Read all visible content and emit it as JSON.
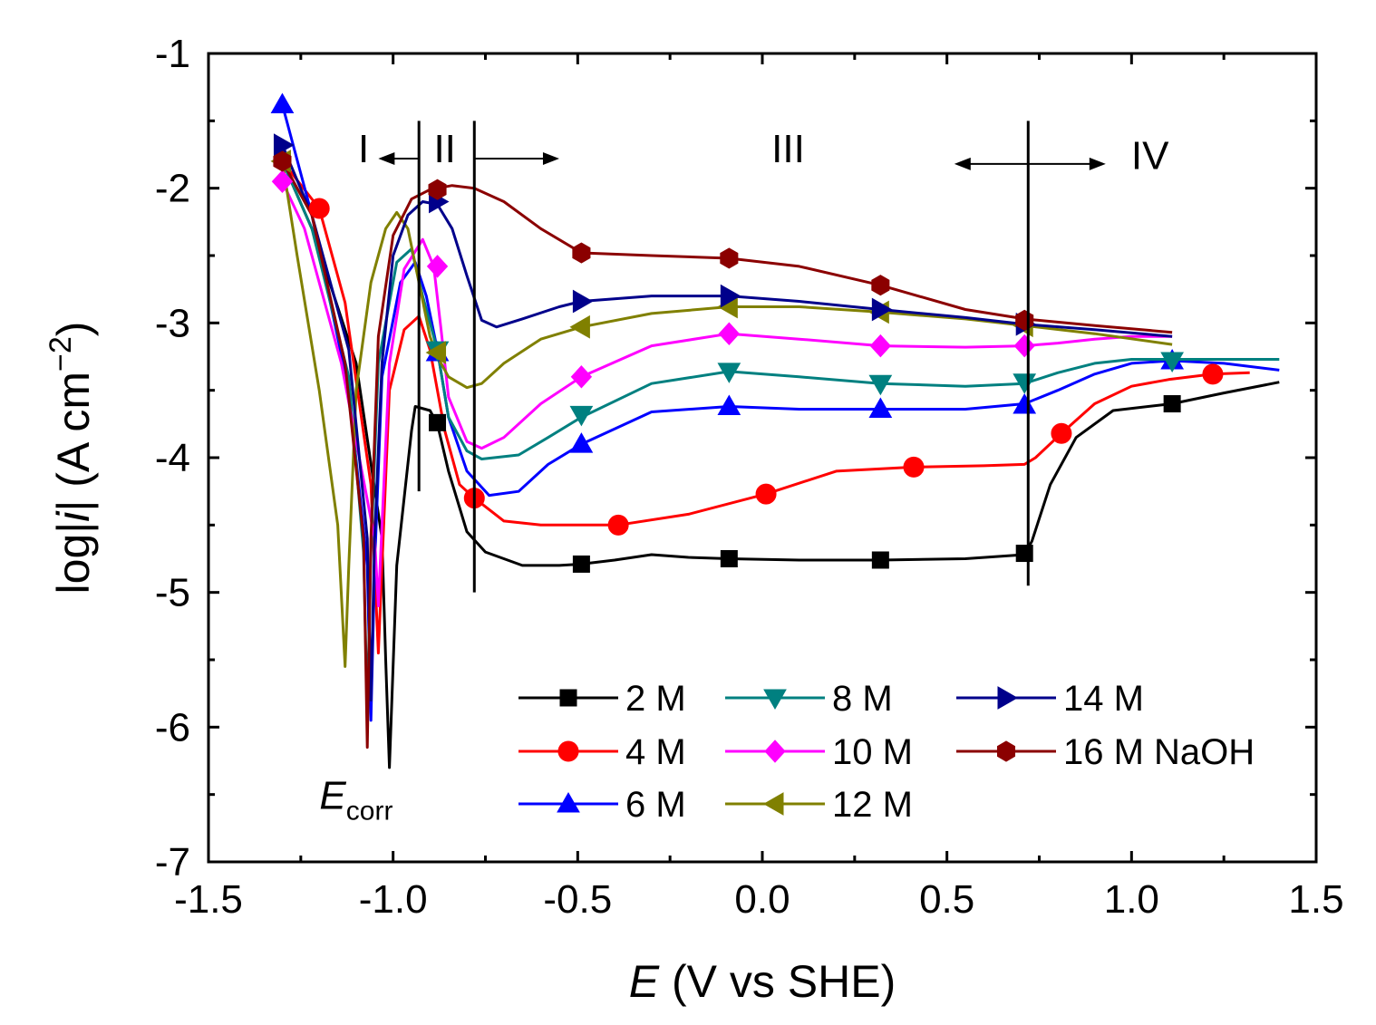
{
  "chart_data": {
    "type": "line",
    "title": "",
    "xlabel": {
      "italic": "E",
      "rest": " (V vs SHE)"
    },
    "ylabel": {
      "pre": "log|",
      "italic": "i",
      "post": "| (A cm",
      "sup": "−2",
      "close": ")"
    },
    "xlim": [
      -1.5,
      1.5
    ],
    "ylim": [
      -7,
      -1
    ],
    "xticks": [
      -1.5,
      -1.0,
      -0.5,
      0.0,
      0.5,
      1.0,
      1.5
    ],
    "xtick_labels": [
      "-1.5",
      "-1.0",
      "-0.5",
      "0.0",
      "0.5",
      "1.0",
      "1.5"
    ],
    "yticks": [
      -7,
      -6,
      -5,
      -4,
      -3,
      -2,
      -1
    ],
    "ytick_labels": [
      "-7",
      "-6",
      "-5",
      "-4",
      "-3",
      "-2",
      "-1"
    ],
    "grid": false,
    "legend_position": "bottom-right",
    "annotations": {
      "regions": [
        {
          "label": "I",
          "x": -1.08,
          "y": -1.7
        },
        {
          "label": "II",
          "x": -0.86,
          "y": -1.7
        },
        {
          "label": "III",
          "x": 0.07,
          "y": -1.7
        },
        {
          "label": "IV",
          "x": 1.05,
          "y": -1.75
        }
      ],
      "vlines": [
        {
          "x": -0.93,
          "y0": -4.25,
          "y1": -1.5
        },
        {
          "x": -0.78,
          "y0": -5.0,
          "y1": -1.5
        },
        {
          "x": 0.72,
          "y0": -4.95,
          "y1": -1.5
        }
      ],
      "arrows": [
        {
          "from": -0.93,
          "to": -1.04,
          "y": -1.78
        },
        {
          "from": -0.78,
          "to": -0.55,
          "y": -1.78
        },
        {
          "from": 0.72,
          "to": 0.52,
          "y": -1.82
        },
        {
          "from": 0.72,
          "to": 0.93,
          "y": -1.82
        }
      ],
      "ecorr": {
        "main": "E",
        "sub": "corr",
        "x": -1.1,
        "y": -6.5
      }
    },
    "series": [
      {
        "name": "2 M",
        "color": "#000000",
        "marker": "square",
        "x": [
          -1.3,
          -1.22,
          -1.1,
          -1.03,
          -1.02,
          -1.01,
          -0.99,
          -0.95,
          -0.94,
          -0.9,
          -0.88,
          -0.85,
          -0.8,
          -0.75,
          -0.65,
          -0.55,
          -0.49,
          -0.4,
          -0.3,
          -0.2,
          -0.09,
          0.1,
          0.32,
          0.55,
          0.71,
          0.73,
          0.78,
          0.85,
          0.95,
          1.11,
          1.25,
          1.4
        ],
        "y": [
          -1.8,
          -2.3,
          -3.3,
          -4.6,
          -5.5,
          -6.3,
          -4.8,
          -3.8,
          -3.62,
          -3.65,
          -3.75,
          -4.1,
          -4.55,
          -4.7,
          -4.8,
          -4.8,
          -4.79,
          -4.76,
          -4.72,
          -4.74,
          -4.75,
          -4.76,
          -4.76,
          -4.75,
          -4.72,
          -4.62,
          -4.2,
          -3.85,
          -3.65,
          -3.6,
          -3.52,
          -3.44
        ],
        "mx": [
          -0.88,
          -0.49,
          -0.09,
          0.32,
          0.71,
          1.11
        ],
        "my": [
          -3.74,
          -4.79,
          -4.75,
          -4.76,
          -4.71,
          -3.6
        ]
      },
      {
        "name": "4 M",
        "color": "#ff0000",
        "marker": "circle",
        "x": [
          -1.3,
          -1.2,
          -1.13,
          -1.06,
          -1.04,
          -1.03,
          -1.01,
          -0.97,
          -0.93,
          -0.9,
          -0.86,
          -0.82,
          -0.78,
          -0.7,
          -0.6,
          -0.5,
          -0.39,
          -0.2,
          0.01,
          0.2,
          0.41,
          0.6,
          0.71,
          0.74,
          0.81,
          0.9,
          1.0,
          1.1,
          1.22,
          1.32
        ],
        "y": [
          -1.8,
          -2.15,
          -2.85,
          -4.2,
          -5.45,
          -4.8,
          -3.5,
          -3.05,
          -2.95,
          -3.2,
          -3.8,
          -4.2,
          -4.3,
          -4.47,
          -4.5,
          -4.5,
          -4.5,
          -4.42,
          -4.27,
          -4.1,
          -4.07,
          -4.06,
          -4.05,
          -4.0,
          -3.82,
          -3.6,
          -3.47,
          -3.42,
          -3.38,
          -3.37
        ],
        "mx": [
          -1.2,
          -0.78,
          -0.39,
          0.01,
          0.41,
          0.81,
          1.22
        ],
        "my": [
          -2.15,
          -4.3,
          -4.5,
          -4.27,
          -4.07,
          -3.82,
          -3.38
        ]
      },
      {
        "name": "6 M",
        "color": "#0000ff",
        "marker": "triangle-up",
        "x": [
          -1.3,
          -1.22,
          -1.12,
          -1.07,
          -1.06,
          -1.05,
          -1.03,
          -0.98,
          -0.94,
          -0.91,
          -0.88,
          -0.85,
          -0.8,
          -0.74,
          -0.66,
          -0.58,
          -0.49,
          -0.3,
          -0.09,
          0.1,
          0.32,
          0.55,
          0.71,
          0.8,
          0.9,
          1.0,
          1.11,
          1.25,
          1.4
        ],
        "y": [
          -1.38,
          -2.2,
          -3.5,
          -4.8,
          -5.95,
          -4.8,
          -3.4,
          -2.7,
          -2.55,
          -2.8,
          -3.2,
          -3.7,
          -4.1,
          -4.28,
          -4.25,
          -4.05,
          -3.9,
          -3.66,
          -3.62,
          -3.64,
          -3.64,
          -3.64,
          -3.6,
          -3.5,
          -3.38,
          -3.3,
          -3.28,
          -3.3,
          -3.35
        ],
        "mx": [
          -1.3,
          -0.88,
          -0.49,
          -0.09,
          0.32,
          0.71,
          1.11
        ],
        "my": [
          -1.38,
          -3.22,
          -3.9,
          -3.62,
          -3.64,
          -3.61,
          -3.28
        ]
      },
      {
        "name": "8 M",
        "color": "#008080",
        "marker": "triangle-down",
        "x": [
          -1.3,
          -1.22,
          -1.12,
          -1.08,
          -1.07,
          -1.06,
          -1.04,
          -0.99,
          -0.95,
          -0.92,
          -0.88,
          -0.85,
          -0.8,
          -0.76,
          -0.66,
          -0.58,
          -0.49,
          -0.3,
          -0.09,
          0.1,
          0.32,
          0.55,
          0.71,
          0.8,
          0.9,
          1.0,
          1.11,
          1.25,
          1.4
        ],
        "y": [
          -1.8,
          -2.3,
          -3.4,
          -4.7,
          -5.9,
          -4.7,
          -3.3,
          -2.55,
          -2.45,
          -2.8,
          -3.2,
          -3.7,
          -3.95,
          -4.01,
          -3.98,
          -3.85,
          -3.7,
          -3.45,
          -3.36,
          -3.4,
          -3.45,
          -3.47,
          -3.45,
          -3.37,
          -3.3,
          -3.27,
          -3.27,
          -3.27,
          -3.27
        ],
        "mx": [
          -0.88,
          -0.49,
          -0.09,
          0.32,
          0.71,
          1.11
        ],
        "my": [
          -3.2,
          -3.68,
          -3.36,
          -3.45,
          -3.44,
          -3.28
        ]
      },
      {
        "name": "10 M",
        "color": "#ff00ff",
        "marker": "diamond",
        "x": [
          -1.3,
          -1.24,
          -1.14,
          -1.05,
          -1.04,
          -1.03,
          -1.01,
          -0.97,
          -0.92,
          -0.89,
          -0.87,
          -0.85,
          -0.8,
          -0.76,
          -0.7,
          -0.6,
          -0.49,
          -0.3,
          -0.09,
          0.1,
          0.32,
          0.55,
          0.71,
          0.8,
          0.9,
          1.0,
          1.11
        ],
        "y": [
          -1.95,
          -2.3,
          -3.3,
          -4.6,
          -5.1,
          -4.5,
          -3.3,
          -2.6,
          -2.38,
          -2.58,
          -3.05,
          -3.55,
          -3.88,
          -3.93,
          -3.85,
          -3.6,
          -3.4,
          -3.17,
          -3.08,
          -3.12,
          -3.17,
          -3.18,
          -3.17,
          -3.15,
          -3.12,
          -3.1,
          -3.1
        ],
        "mx": [
          -1.3,
          -0.88,
          -0.49,
          -0.09,
          0.32,
          0.71
        ],
        "my": [
          -1.95,
          -2.58,
          -3.4,
          -3.08,
          -3.17,
          -3.17
        ]
      },
      {
        "name": "12 M",
        "color": "#808000",
        "marker": "triangle-left",
        "x": [
          -1.3,
          -1.26,
          -1.2,
          -1.15,
          -1.13,
          -1.12,
          -1.1,
          -1.06,
          -1.02,
          -0.99,
          -0.96,
          -0.93,
          -0.9,
          -0.88,
          -0.85,
          -0.8,
          -0.76,
          -0.7,
          -0.6,
          -0.49,
          -0.3,
          -0.09,
          0.1,
          0.32,
          0.55,
          0.71,
          0.9,
          1.11
        ],
        "y": [
          -1.8,
          -2.5,
          -3.5,
          -4.5,
          -5.55,
          -4.8,
          -3.5,
          -2.7,
          -2.3,
          -2.18,
          -2.3,
          -2.7,
          -3.1,
          -3.25,
          -3.4,
          -3.48,
          -3.45,
          -3.3,
          -3.12,
          -3.03,
          -2.93,
          -2.88,
          -2.88,
          -2.92,
          -2.97,
          -3.02,
          -3.08,
          -3.16
        ],
        "mx": [
          -1.3,
          -0.88,
          -0.49,
          -0.09,
          0.32,
          0.71
        ],
        "my": [
          -1.8,
          -3.22,
          -3.03,
          -2.88,
          -2.92,
          -3.02
        ]
      },
      {
        "name": "14 M",
        "color": "#00008b",
        "marker": "triangle-right",
        "x": [
          -1.3,
          -1.22,
          -1.12,
          -1.07,
          -1.06,
          -1.05,
          -1.03,
          -1.0,
          -0.96,
          -0.92,
          -0.88,
          -0.84,
          -0.8,
          -0.76,
          -0.72,
          -0.65,
          -0.55,
          -0.49,
          -0.3,
          -0.09,
          0.1,
          0.32,
          0.55,
          0.71,
          0.9,
          1.11
        ],
        "y": [
          -1.68,
          -2.2,
          -3.2,
          -4.6,
          -5.8,
          -4.6,
          -3.3,
          -2.5,
          -2.2,
          -2.1,
          -2.12,
          -2.3,
          -2.65,
          -2.98,
          -3.03,
          -2.97,
          -2.88,
          -2.84,
          -2.8,
          -2.8,
          -2.84,
          -2.9,
          -2.96,
          -3.01,
          -3.05,
          -3.1
        ],
        "mx": [
          -1.3,
          -0.88,
          -0.49,
          -0.09,
          0.32,
          0.71
        ],
        "my": [
          -1.68,
          -2.1,
          -2.84,
          -2.8,
          -2.9,
          -3.01
        ]
      },
      {
        "name": "16 M NaOH",
        "color": "#8b0000",
        "marker": "hexagon",
        "x": [
          -1.3,
          -1.22,
          -1.13,
          -1.08,
          -1.07,
          -1.06,
          -1.04,
          -1.0,
          -0.95,
          -0.9,
          -0.84,
          -0.78,
          -0.7,
          -0.6,
          -0.49,
          -0.3,
          -0.09,
          0.1,
          0.32,
          0.55,
          0.71,
          0.9,
          1.11
        ],
        "y": [
          -1.8,
          -2.2,
          -3.3,
          -4.6,
          -6.15,
          -4.6,
          -3.1,
          -2.35,
          -2.08,
          -2.01,
          -1.98,
          -2.0,
          -2.1,
          -2.3,
          -2.48,
          -2.5,
          -2.52,
          -2.58,
          -2.72,
          -2.9,
          -2.97,
          -3.02,
          -3.07
        ],
        "mx": [
          -1.3,
          -0.88,
          -0.49,
          -0.09,
          0.32,
          0.71
        ],
        "my": [
          -1.8,
          -2.01,
          -2.48,
          -2.52,
          -2.72,
          -2.98
        ]
      }
    ]
  }
}
